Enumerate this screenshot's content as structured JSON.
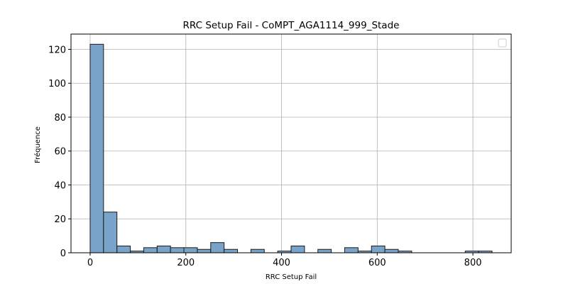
{
  "chart_data": {
    "type": "bar",
    "title": "RRC Setup Fail - CoMPT_AGA1114_999_Stade",
    "xlabel": "RRC Setup Fail",
    "ylabel": "Fréquence",
    "xlim": [
      -40,
      880
    ],
    "ylim": [
      0,
      129
    ],
    "x_ticks": [
      0,
      200,
      400,
      600,
      800
    ],
    "y_ticks": [
      0,
      20,
      40,
      60,
      80,
      100,
      120
    ],
    "grid": true,
    "legend": "top-right",
    "bar_color": "#7aa3c9",
    "bar_edge_color": "#1a1a1a",
    "bin_width": 28,
    "bins": [
      {
        "start": 0,
        "count": 123
      },
      {
        "start": 28,
        "count": 24
      },
      {
        "start": 56,
        "count": 4
      },
      {
        "start": 84,
        "count": 1
      },
      {
        "start": 112,
        "count": 3
      },
      {
        "start": 140,
        "count": 4
      },
      {
        "start": 168,
        "count": 3
      },
      {
        "start": 196,
        "count": 3
      },
      {
        "start": 224,
        "count": 2
      },
      {
        "start": 252,
        "count": 6
      },
      {
        "start": 280,
        "count": 2
      },
      {
        "start": 308,
        "count": 0
      },
      {
        "start": 336,
        "count": 2
      },
      {
        "start": 364,
        "count": 0
      },
      {
        "start": 392,
        "count": 1
      },
      {
        "start": 420,
        "count": 4
      },
      {
        "start": 448,
        "count": 0
      },
      {
        "start": 476,
        "count": 2
      },
      {
        "start": 504,
        "count": 0
      },
      {
        "start": 532,
        "count": 3
      },
      {
        "start": 560,
        "count": 1
      },
      {
        "start": 588,
        "count": 4
      },
      {
        "start": 616,
        "count": 2
      },
      {
        "start": 644,
        "count": 1
      },
      {
        "start": 672,
        "count": 0
      },
      {
        "start": 700,
        "count": 0
      },
      {
        "start": 728,
        "count": 0
      },
      {
        "start": 756,
        "count": 0
      },
      {
        "start": 784,
        "count": 1
      },
      {
        "start": 812,
        "count": 1
      }
    ]
  }
}
